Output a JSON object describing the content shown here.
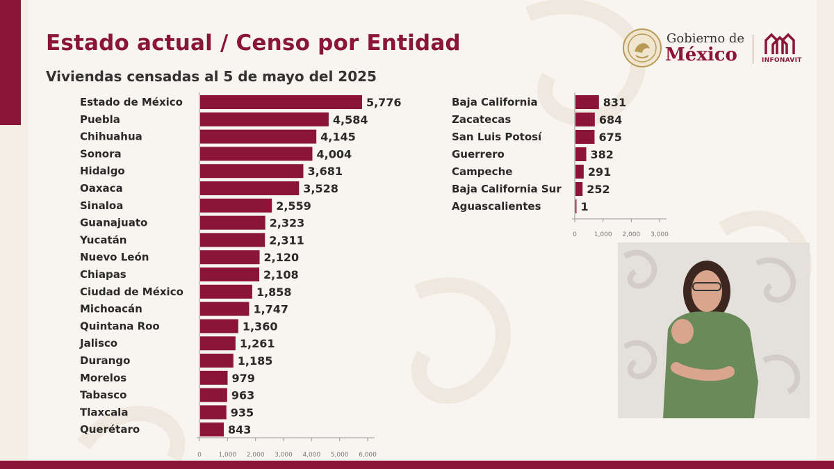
{
  "header": {
    "title": "Estado actual / Censo por Entidad",
    "subtitle": "Viviendas censadas al 5 de mayo del 2025"
  },
  "logos": {
    "gobierno_line1": "Gobierno de",
    "gobierno_line2": "México",
    "infonavit": "INFONAVIT"
  },
  "colors": {
    "brand": "#8a1538",
    "bar": "#8a1538",
    "background": "#f4efe6"
  },
  "chart_data": [
    {
      "type": "bar",
      "orientation": "horizontal",
      "categories": [
        "Estado de México",
        "Puebla",
        "Chihuahua",
        "Sonora",
        "Hidalgo",
        "Oaxaca",
        "Sinaloa",
        "Guanajuato",
        "Yucatán",
        "Nuevo León",
        "Chiapas",
        "Ciudad de México",
        "Michoacán",
        "Quintana Roo",
        "Jalisco",
        "Durango",
        "Morelos",
        "Tabasco",
        "Tlaxcala",
        "Querétaro"
      ],
      "values": [
        5776,
        4584,
        4145,
        4004,
        3681,
        3528,
        2559,
        2323,
        2311,
        2120,
        2108,
        1858,
        1747,
        1360,
        1261,
        1185,
        979,
        963,
        935,
        843
      ],
      "value_labels": [
        "5,776",
        "4,584",
        "4,145",
        "4,004",
        "3,681",
        "3,528",
        "2,559",
        "2,323",
        "2,311",
        "2,120",
        "2,108",
        "1,858",
        "1,747",
        "1,360",
        "1,261",
        "1,185",
        "979",
        "963",
        "935",
        "843"
      ],
      "ticks": [
        "0",
        "1,000",
        "2,000",
        "3,000",
        "4,000",
        "5,000",
        "6,000"
      ],
      "xlim": [
        0,
        6000
      ],
      "grid": false
    },
    {
      "type": "bar",
      "orientation": "horizontal",
      "categories": [
        "Baja California",
        "Zacatecas",
        "San Luis Potosí",
        "Guerrero",
        "Campeche",
        "Baja California Sur",
        "Aguascalientes"
      ],
      "values": [
        831,
        684,
        675,
        382,
        291,
        252,
        1
      ],
      "value_labels": [
        "831",
        "684",
        "675",
        "382",
        "291",
        "252",
        "1"
      ],
      "ticks": [
        "0",
        "1,000",
        "2,000",
        "3,000"
      ],
      "xlim": [
        0,
        3000
      ],
      "grid": false
    }
  ]
}
